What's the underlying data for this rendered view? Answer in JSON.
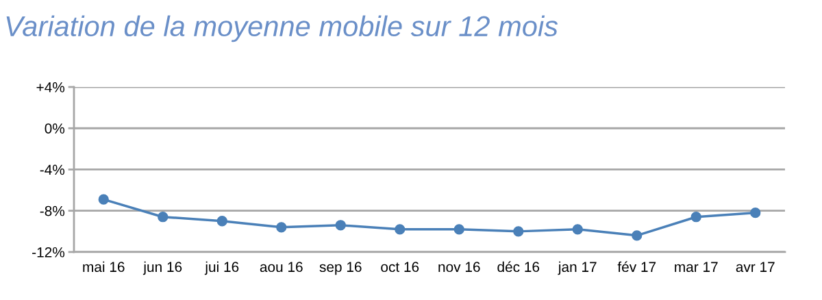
{
  "chart_data": {
    "type": "line",
    "title": "Variation de la moyenne mobile sur 12 mois",
    "categories": [
      "mai 16",
      "jun 16",
      "jui 16",
      "aou 16",
      "sep 16",
      "oct 16",
      "nov 16",
      "déc 16",
      "jan 17",
      "fév 17",
      "mar 17",
      "avr 17"
    ],
    "series": [
      {
        "color": "#4a80b8",
        "values": [
          -6.9,
          -8.6,
          -9.0,
          -9.6,
          -9.4,
          -9.8,
          -9.8,
          -10.0,
          -9.8,
          -10.4,
          -8.6,
          -8.2
        ]
      }
    ],
    "ylim": [
      -12,
      4
    ],
    "yticks": [
      {
        "value": -12,
        "label": "-12%"
      },
      {
        "value": -8,
        "label": "-8%"
      },
      {
        "value": -4,
        "label": "-4%"
      },
      {
        "value": 0,
        "label": "0%"
      },
      {
        "value": 4,
        "label": "+4%"
      }
    ],
    "grid": "y",
    "marker": "circle",
    "line_style": "solid"
  }
}
